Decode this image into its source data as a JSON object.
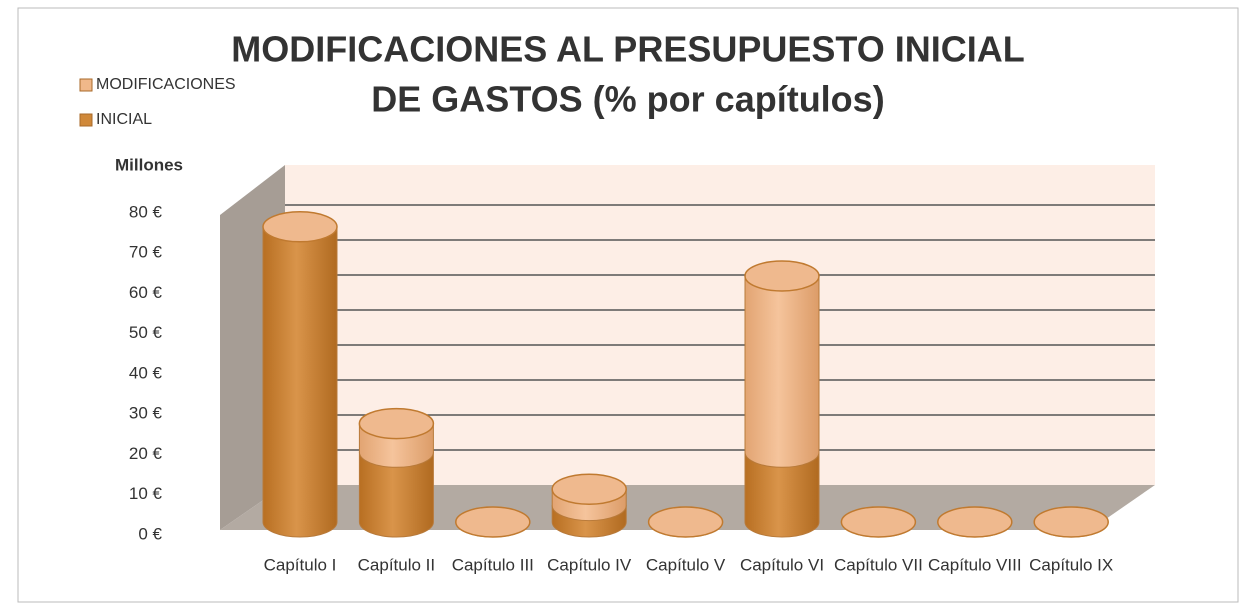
{
  "chart_data": {
    "type": "bar3d_stacked_cylinder",
    "title": [
      "MODIFICACIONES AL PRESUPUESTO INICIAL",
      "DE GASTOS (% por capítulos)"
    ],
    "y_axis_label": "Millones",
    "categories": [
      "Capítulo I",
      "Capítulo II",
      "Capítulo III",
      "Capítulo IV",
      "Capítulo V",
      "Capítulo VI",
      "Capítulo VII",
      "Capítulo VIII",
      "Capítulo IX"
    ],
    "series": [
      {
        "name": "INICIAL",
        "color": "#d0893a",
        "values": [
          72,
          17,
          0,
          4,
          0,
          17,
          0,
          0,
          0
        ]
      },
      {
        "name": "MODIFICACIONES",
        "color": "#f0b88a",
        "values": [
          0,
          7,
          0,
          4,
          0,
          43,
          0,
          0,
          0
        ]
      }
    ],
    "ylim": [
      0,
      80
    ],
    "yticks": [
      {
        "value": 0,
        "label": "0 €"
      },
      {
        "value": 10,
        "label": "10 €"
      },
      {
        "value": 20,
        "label": "20 €"
      },
      {
        "value": 30,
        "label": "30 €"
      },
      {
        "value": 40,
        "label": "40 €"
      },
      {
        "value": 50,
        "label": "50 €"
      },
      {
        "value": 60,
        "label": "60 €"
      },
      {
        "value": 70,
        "label": "70 €"
      },
      {
        "value": 80,
        "label": "80 €"
      }
    ],
    "grid": true
  }
}
